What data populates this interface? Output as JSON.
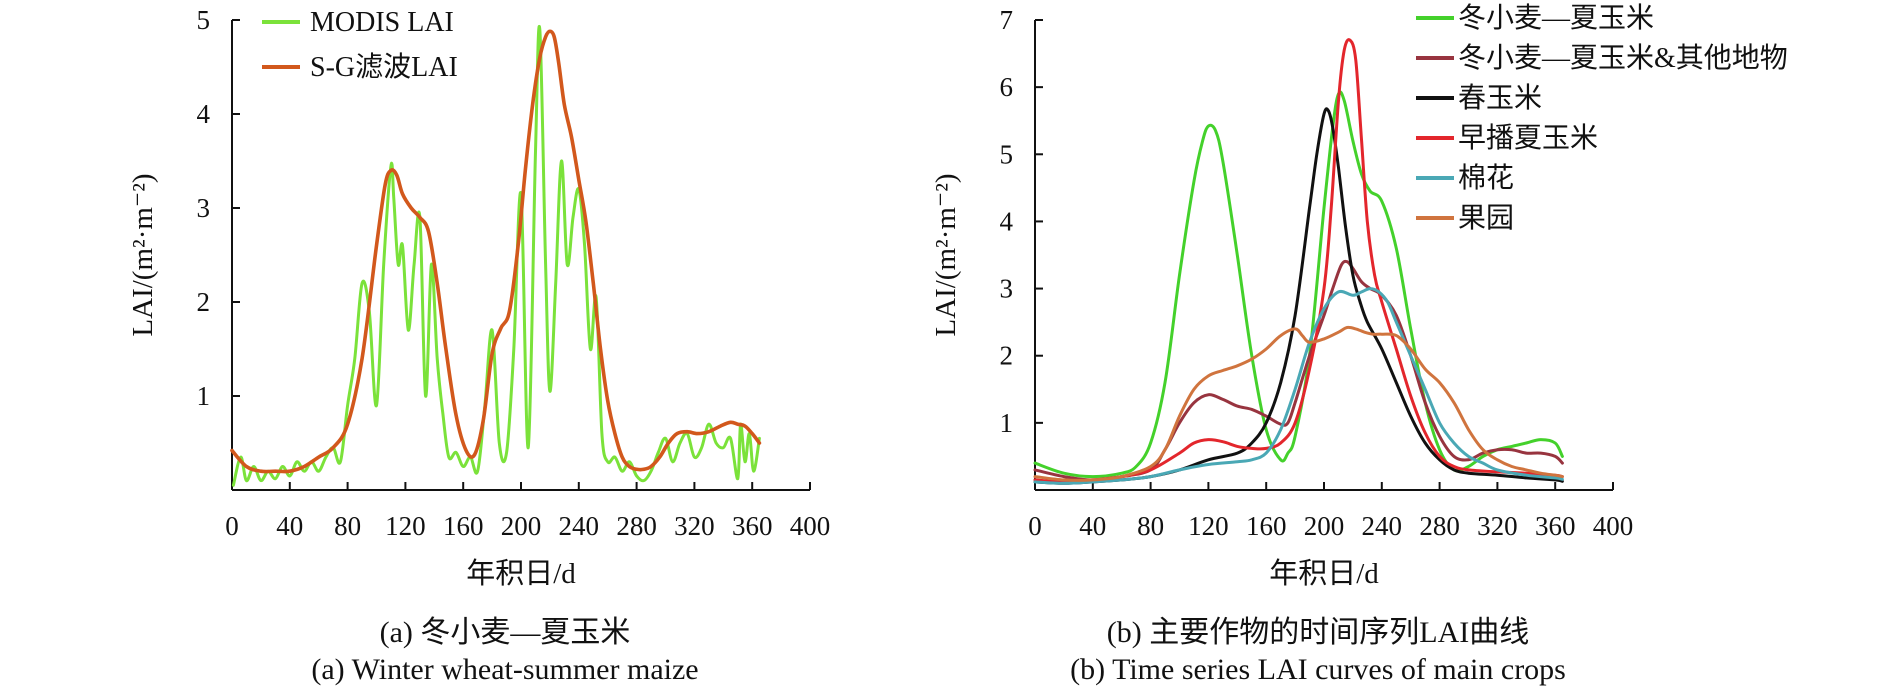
{
  "chart_data": [
    {
      "id": "a",
      "type": "line",
      "title": "",
      "xlabel": "年积日/d",
      "ylabel": "LAI/(m²·m⁻²)",
      "xlim": [
        0,
        400
      ],
      "ylim": [
        0,
        5
      ],
      "xticks": [
        0,
        40,
        80,
        120,
        160,
        200,
        240,
        280,
        320,
        360,
        400
      ],
      "yticks": [
        1,
        2,
        3,
        4,
        5
      ],
      "y_origin_label": "0",
      "legend_position": "top-left",
      "caption_cn": "(a) 冬小麦—夏玉米",
      "caption_en": "(a) Winter wheat-summer maize",
      "series": [
        {
          "name": "MODIS LAI",
          "color": "#7be23a",
          "x": [
            1,
            6,
            10,
            15,
            20,
            25,
            30,
            35,
            40,
            45,
            50,
            55,
            60,
            65,
            70,
            75,
            80,
            85,
            90,
            95,
            100,
            105,
            110,
            112,
            115,
            118,
            122,
            126,
            130,
            134,
            138,
            142,
            146,
            150,
            155,
            160,
            165,
            170,
            175,
            180,
            185,
            190,
            195,
            200,
            205,
            210,
            213,
            217,
            220,
            224,
            228,
            232,
            236,
            240,
            244,
            248,
            252,
            256,
            260,
            265,
            270,
            275,
            280,
            285,
            290,
            295,
            300,
            305,
            310,
            315,
            320,
            325,
            330,
            335,
            340,
            345,
            350,
            352,
            355,
            358,
            361,
            365
          ],
          "values": [
            0.05,
            0.35,
            0.1,
            0.25,
            0.1,
            0.2,
            0.12,
            0.25,
            0.15,
            0.3,
            0.2,
            0.3,
            0.2,
            0.35,
            0.45,
            0.3,
            0.9,
            1.4,
            2.2,
            1.9,
            0.9,
            2.4,
            3.45,
            3.1,
            2.4,
            2.6,
            1.7,
            2.4,
            2.9,
            1.0,
            2.4,
            1.4,
            0.8,
            0.35,
            0.4,
            0.25,
            0.35,
            0.2,
            0.9,
            1.7,
            0.5,
            0.4,
            1.5,
            3.15,
            0.45,
            3.6,
            4.9,
            2.4,
            1.05,
            2.2,
            3.5,
            2.4,
            2.9,
            3.2,
            2.6,
            1.5,
            2.05,
            0.6,
            0.3,
            0.35,
            0.2,
            0.3,
            0.15,
            0.1,
            0.2,
            0.4,
            0.55,
            0.3,
            0.5,
            0.6,
            0.35,
            0.45,
            0.7,
            0.5,
            0.45,
            0.55,
            0.12,
            0.7,
            0.3,
            0.6,
            0.2,
            0.55
          ]
        },
        {
          "name": "S-G滤波LAI",
          "color": "#d2581c",
          "x": [
            0,
            10,
            20,
            30,
            40,
            50,
            60,
            70,
            80,
            90,
            100,
            106,
            110,
            114,
            118,
            124,
            130,
            136,
            142,
            148,
            155,
            162,
            168,
            174,
            180,
            186,
            192,
            198,
            203,
            208,
            213,
            217,
            220,
            223,
            226,
            230,
            235,
            240,
            245,
            250,
            255,
            260,
            265,
            270,
            275,
            280,
            285,
            290,
            296,
            302,
            308,
            315,
            322,
            330,
            338,
            345,
            350,
            355,
            360,
            365
          ],
          "values": [
            0.42,
            0.25,
            0.2,
            0.2,
            0.2,
            0.25,
            0.35,
            0.45,
            0.7,
            1.4,
            2.6,
            3.25,
            3.4,
            3.35,
            3.15,
            3.0,
            2.9,
            2.75,
            2.2,
            1.5,
            0.8,
            0.42,
            0.38,
            0.75,
            1.45,
            1.72,
            1.9,
            2.6,
            3.4,
            4.1,
            4.6,
            4.82,
            4.88,
            4.82,
            4.55,
            4.1,
            3.75,
            3.3,
            2.85,
            2.2,
            1.5,
            0.95,
            0.6,
            0.35,
            0.25,
            0.22,
            0.22,
            0.25,
            0.35,
            0.5,
            0.6,
            0.62,
            0.6,
            0.62,
            0.68,
            0.72,
            0.7,
            0.68,
            0.6,
            0.5
          ]
        }
      ]
    },
    {
      "id": "b",
      "type": "line",
      "title": "",
      "xlabel": "年积日/d",
      "ylabel": "LAI/(m²·m⁻²)",
      "xlim": [
        0,
        400
      ],
      "ylim": [
        0,
        7
      ],
      "xticks": [
        0,
        40,
        80,
        120,
        160,
        200,
        240,
        280,
        320,
        360,
        400
      ],
      "yticks": [
        1,
        2,
        3,
        4,
        5,
        6,
        7
      ],
      "y_origin_label": "0",
      "legend_position": "top-right",
      "caption_cn": "(b) 主要作物的时间序列LAI曲线",
      "caption_en": "(b) Time series LAI curves of main crops",
      "series": [
        {
          "name": "冬小麦—夏玉米",
          "color": "#44d12b",
          "x": [
            0,
            20,
            40,
            60,
            70,
            80,
            90,
            100,
            110,
            116,
            120,
            125,
            130,
            140,
            150,
            160,
            170,
            175,
            180,
            190,
            200,
            206,
            210,
            214,
            220,
            226,
            232,
            240,
            250,
            260,
            270,
            280,
            290,
            300,
            310,
            320,
            330,
            340,
            350,
            360,
            365
          ],
          "values": [
            0.4,
            0.25,
            0.2,
            0.25,
            0.35,
            0.7,
            1.6,
            3.2,
            4.6,
            5.2,
            5.42,
            5.35,
            4.9,
            3.5,
            2.0,
            0.9,
            0.45,
            0.55,
            0.8,
            2.0,
            4.2,
            5.4,
            5.9,
            5.8,
            5.2,
            4.7,
            4.45,
            4.3,
            3.6,
            2.4,
            1.3,
            0.6,
            0.3,
            0.35,
            0.5,
            0.6,
            0.65,
            0.7,
            0.75,
            0.7,
            0.5
          ]
        },
        {
          "name": "冬小麦—夏玉米&其他地物",
          "color": "#98343f",
          "x": [
            0,
            20,
            40,
            60,
            80,
            90,
            100,
            110,
            120,
            130,
            140,
            150,
            160,
            170,
            175,
            180,
            190,
            200,
            206,
            212,
            216,
            220,
            226,
            232,
            240,
            250,
            260,
            270,
            280,
            290,
            300,
            310,
            320,
            330,
            340,
            350,
            360,
            365
          ],
          "values": [
            0.3,
            0.2,
            0.15,
            0.2,
            0.3,
            0.6,
            1.0,
            1.3,
            1.42,
            1.35,
            1.25,
            1.2,
            1.1,
            0.98,
            1.0,
            1.3,
            2.0,
            2.6,
            3.0,
            3.35,
            3.4,
            3.3,
            3.1,
            3.0,
            2.9,
            2.6,
            2.0,
            1.3,
            0.8,
            0.5,
            0.45,
            0.55,
            0.6,
            0.6,
            0.55,
            0.55,
            0.5,
            0.4
          ]
        },
        {
          "name": "春玉米",
          "color": "#111111",
          "x": [
            0,
            20,
            40,
            60,
            80,
            100,
            120,
            140,
            150,
            160,
            170,
            180,
            190,
            195,
            200,
            203,
            206,
            210,
            215,
            220,
            225,
            230,
            240,
            250,
            260,
            270,
            280,
            290,
            300,
            320,
            340,
            360,
            365
          ],
          "values": [
            0.12,
            0.1,
            0.12,
            0.15,
            0.2,
            0.3,
            0.45,
            0.55,
            0.7,
            1.0,
            1.6,
            2.6,
            4.2,
            5.0,
            5.6,
            5.65,
            5.4,
            4.8,
            3.9,
            3.2,
            2.8,
            2.5,
            2.1,
            1.6,
            1.1,
            0.7,
            0.45,
            0.3,
            0.25,
            0.22,
            0.18,
            0.15,
            0.13
          ]
        },
        {
          "name": "早播夏玉米",
          "color": "#e3262c",
          "x": [
            0,
            20,
            40,
            60,
            80,
            100,
            110,
            120,
            130,
            140,
            150,
            160,
            170,
            180,
            190,
            200,
            205,
            210,
            214,
            218,
            222,
            226,
            230,
            235,
            240,
            250,
            260,
            270,
            280,
            290,
            300,
            320,
            340,
            360,
            365
          ],
          "values": [
            0.15,
            0.12,
            0.15,
            0.2,
            0.3,
            0.55,
            0.7,
            0.75,
            0.72,
            0.65,
            0.62,
            0.62,
            0.7,
            1.0,
            1.8,
            3.0,
            4.2,
            5.8,
            6.55,
            6.7,
            6.4,
            5.2,
            4.0,
            3.2,
            2.8,
            2.1,
            1.4,
            0.85,
            0.5,
            0.35,
            0.3,
            0.27,
            0.25,
            0.22,
            0.2
          ]
        },
        {
          "name": "棉花",
          "color": "#4aa8b5",
          "x": [
            0,
            20,
            40,
            60,
            80,
            100,
            120,
            140,
            150,
            160,
            170,
            180,
            190,
            200,
            210,
            220,
            226,
            232,
            238,
            244,
            250,
            260,
            270,
            280,
            290,
            300,
            310,
            320,
            340,
            360,
            365
          ],
          "values": [
            0.12,
            0.1,
            0.12,
            0.15,
            0.2,
            0.3,
            0.38,
            0.42,
            0.45,
            0.55,
            0.9,
            1.5,
            2.2,
            2.7,
            2.95,
            2.9,
            2.95,
            3.0,
            2.95,
            2.8,
            2.5,
            2.0,
            1.5,
            1.0,
            0.7,
            0.5,
            0.4,
            0.3,
            0.22,
            0.18,
            0.16
          ]
        },
        {
          "name": "果园",
          "color": "#d0743e",
          "x": [
            0,
            20,
            40,
            60,
            80,
            90,
            100,
            110,
            120,
            130,
            140,
            150,
            160,
            170,
            180,
            185,
            190,
            200,
            210,
            216,
            222,
            228,
            234,
            240,
            250,
            260,
            270,
            280,
            290,
            300,
            310,
            320,
            330,
            340,
            350,
            360,
            365
          ],
          "values": [
            0.2,
            0.15,
            0.15,
            0.2,
            0.35,
            0.6,
            1.1,
            1.5,
            1.7,
            1.78,
            1.85,
            1.95,
            2.1,
            2.3,
            2.4,
            2.3,
            2.2,
            2.25,
            2.35,
            2.42,
            2.4,
            2.35,
            2.32,
            2.32,
            2.3,
            2.1,
            1.8,
            1.6,
            1.3,
            0.9,
            0.6,
            0.45,
            0.35,
            0.3,
            0.25,
            0.22,
            0.2
          ]
        }
      ]
    }
  ]
}
